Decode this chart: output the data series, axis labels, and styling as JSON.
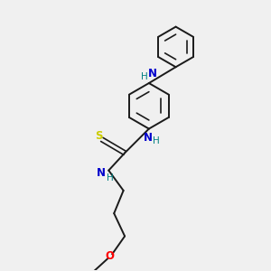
{
  "bg_color": "#f0f0f0",
  "bond_color": "#1a1a1a",
  "N_color": "#0000cc",
  "S_color": "#cccc00",
  "O_color": "#ff0000",
  "H_color": "#008080",
  "fig_width": 3.0,
  "fig_height": 3.0,
  "dpi": 100,
  "xlim": [
    0,
    10
  ],
  "ylim": [
    0,
    10
  ]
}
